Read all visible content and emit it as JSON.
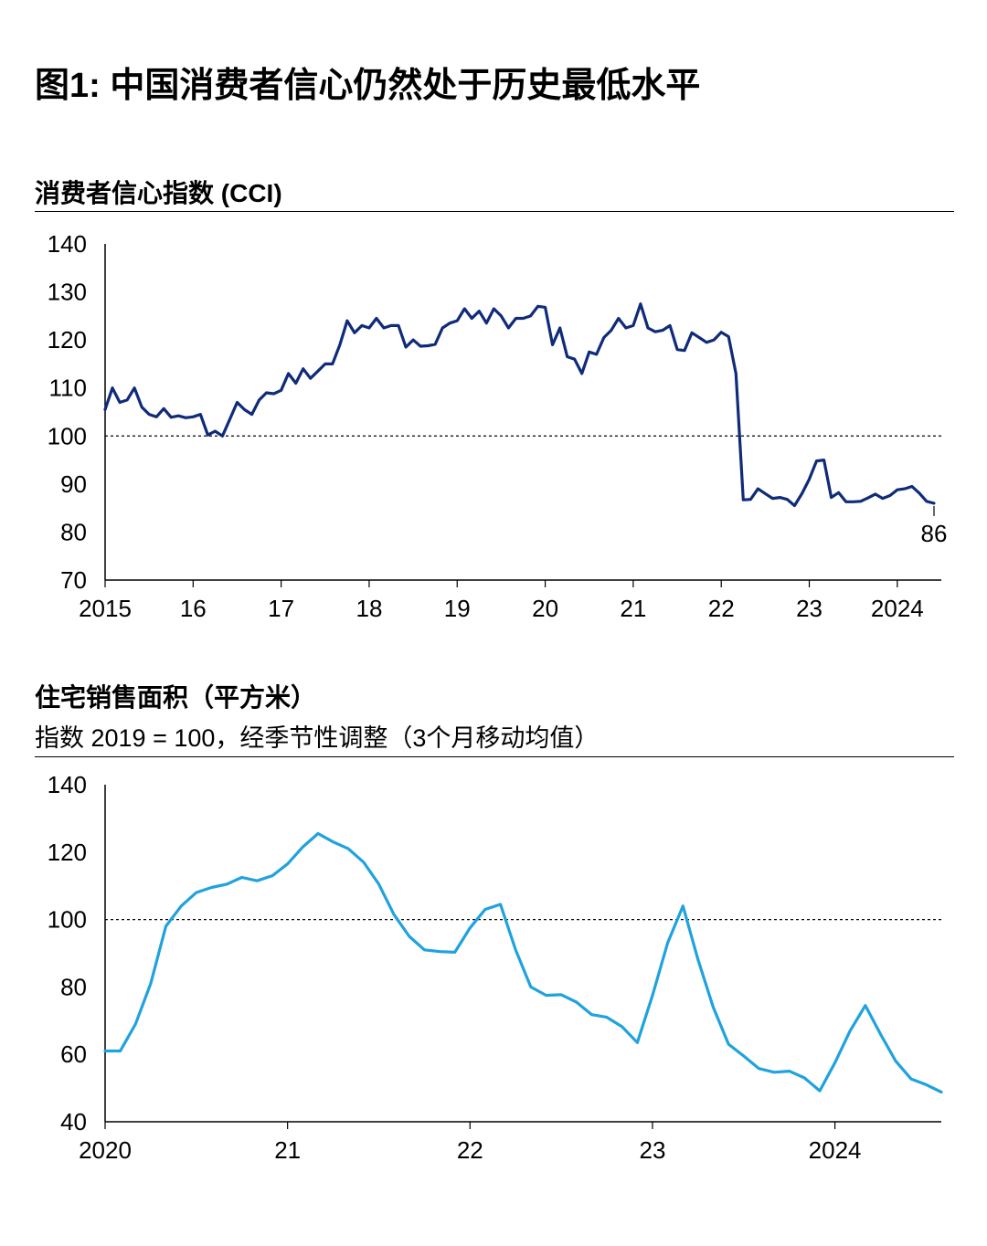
{
  "figure_title": "图1: 中国消费者信心仍然处于历史最低水平",
  "chart_data": [
    {
      "type": "line",
      "title": "消费者信心指数 (CCI)",
      "subtitle": "",
      "ylim": [
        70,
        140
      ],
      "xlim": [
        2015.0,
        2024.5
      ],
      "yticks": [
        140,
        130,
        120,
        110,
        100,
        90,
        80,
        70
      ],
      "xticks": [
        {
          "pos": 2015,
          "label": "2015"
        },
        {
          "pos": 2016,
          "label": "16"
        },
        {
          "pos": 2017,
          "label": "17"
        },
        {
          "pos": 2018,
          "label": "18"
        },
        {
          "pos": 2019,
          "label": "19"
        },
        {
          "pos": 2020,
          "label": "20"
        },
        {
          "pos": 2021,
          "label": "21"
        },
        {
          "pos": 2022,
          "label": "22"
        },
        {
          "pos": 2023,
          "label": "23"
        },
        {
          "pos": 2024,
          "label": "2024"
        }
      ],
      "reference_line": 100,
      "end_label": "86",
      "line_color": "#0f2b7a",
      "series": [
        {
          "x": [
            2015.0,
            2015.083,
            2015.167,
            2015.25,
            2015.333,
            2015.417,
            2015.5,
            2015.583,
            2015.667,
            2015.75,
            2015.833,
            2015.917,
            2016.0,
            2016.083,
            2016.167,
            2016.25,
            2016.333,
            2016.417,
            2016.5,
            2016.583,
            2016.667,
            2016.75,
            2016.833,
            2016.917,
            2017.0,
            2017.083,
            2017.167,
            2017.25,
            2017.333,
            2017.417,
            2017.5,
            2017.583,
            2017.667,
            2017.75,
            2017.833,
            2017.917,
            2018.0,
            2018.083,
            2018.167,
            2018.25,
            2018.333,
            2018.417,
            2018.5,
            2018.583,
            2018.667,
            2018.75,
            2018.833,
            2018.917,
            2019.0,
            2019.083,
            2019.167,
            2019.25,
            2019.333,
            2019.417,
            2019.5,
            2019.583,
            2019.667,
            2019.75,
            2019.833,
            2019.917,
            2020.0,
            2020.083,
            2020.167,
            2020.25,
            2020.333,
            2020.417,
            2020.5,
            2020.583,
            2020.667,
            2020.75,
            2020.833,
            2020.917,
            2021.0,
            2021.083,
            2021.167,
            2021.25,
            2021.333,
            2021.417,
            2021.5,
            2021.583,
            2021.667,
            2021.75,
            2021.833,
            2021.917,
            2022.0,
            2022.083,
            2022.167,
            2022.25,
            2022.333,
            2022.417,
            2022.5,
            2022.583,
            2022.667,
            2022.75,
            2022.833,
            2022.917,
            2023.0,
            2023.083,
            2023.167,
            2023.25,
            2023.333,
            2023.417,
            2023.5,
            2023.583,
            2023.667,
            2023.75,
            2023.833,
            2023.917,
            2024.0,
            2024.083,
            2024.167,
            2024.25,
            2024.333,
            2024.417
          ],
          "y": [
            105.5,
            110,
            107,
            107.5,
            110,
            106,
            104.5,
            104,
            105.7,
            103.9,
            104.2,
            103.8,
            104,
            104.5,
            100.2,
            101,
            100,
            103.5,
            107,
            105.5,
            104.5,
            107.5,
            109,
            108.8,
            109.5,
            113,
            111,
            114,
            112,
            113.5,
            115,
            115,
            119,
            124,
            121.5,
            123,
            122.5,
            124.5,
            122.5,
            123,
            123,
            118.5,
            120,
            118.7,
            118.8,
            119.1,
            122.5,
            123.5,
            124,
            126.5,
            124.5,
            126,
            123.5,
            126.5,
            125,
            122.5,
            124.5,
            124.5,
            125,
            127,
            126.8,
            119,
            122.5,
            116.5,
            116,
            113,
            117.5,
            117,
            120.5,
            122,
            124.5,
            122.5,
            123,
            127.5,
            122.5,
            121.7,
            122,
            123,
            118,
            117.8,
            121.5,
            120.5,
            119.5,
            120,
            121.6,
            120.7,
            113,
            86.7,
            86.8,
            89,
            88,
            87,
            87.2,
            86.8,
            85.5,
            88,
            91,
            94.8,
            95,
            87.2,
            88.2,
            86.3,
            86.3,
            86.4,
            87.1,
            87.9,
            87,
            87.6,
            88.8,
            89,
            89.5,
            88.1,
            86.4,
            86
          ]
        }
      ]
    },
    {
      "type": "line",
      "title": "住宅销售面积（平方米）",
      "subtitle": "指数 2019 = 100，经季节性调整（3个月移动均值）",
      "ylim": [
        40,
        140
      ],
      "xlim": [
        2020.0,
        2024.583
      ],
      "yticks": [
        140,
        120,
        100,
        80,
        60,
        40
      ],
      "xticks": [
        {
          "pos": 2020,
          "label": "2020"
        },
        {
          "pos": 2021,
          "label": "21"
        },
        {
          "pos": 2022,
          "label": "22"
        },
        {
          "pos": 2023,
          "label": "23"
        },
        {
          "pos": 2024,
          "label": "2024"
        }
      ],
      "reference_line": 100,
      "line_color": "#1fa2de",
      "series": [
        {
          "x": [
            2020.0,
            2020.083,
            2020.167,
            2020.25,
            2020.333,
            2020.417,
            2020.5,
            2020.583,
            2020.667,
            2020.75,
            2020.833,
            2020.917,
            2021.0,
            2021.083,
            2021.167,
            2021.25,
            2021.333,
            2021.417,
            2021.5,
            2021.583,
            2021.667,
            2021.75,
            2021.833,
            2021.917,
            2022.0,
            2022.083,
            2022.167,
            2022.25,
            2022.333,
            2022.417,
            2022.5,
            2022.583,
            2022.667,
            2022.75,
            2022.833,
            2022.917,
            2023.0,
            2023.083,
            2023.167,
            2023.25,
            2023.333,
            2023.417,
            2023.5,
            2023.583,
            2023.667,
            2023.75,
            2023.833,
            2023.917,
            2024.0,
            2024.083,
            2024.167,
            2024.25,
            2024.333,
            2024.417,
            2024.5,
            2024.583
          ],
          "y": [
            61,
            61,
            69,
            81,
            98,
            104,
            108,
            109.5,
            110.5,
            112.5,
            111.5,
            113,
            116.5,
            121.5,
            125.5,
            123,
            121,
            117,
            110.5,
            101.5,
            95,
            91,
            90.5,
            90.3,
            97.5,
            103,
            104.5,
            91,
            80,
            77.5,
            77.7,
            75.5,
            71.8,
            71,
            68.2,
            63.5,
            77.5,
            93,
            104,
            88,
            74,
            63,
            59.5,
            55.8,
            54.7,
            55,
            53,
            49.2,
            57.5,
            67,
            74.5,
            66,
            58,
            52.7,
            51,
            48.8
          ]
        }
      ]
    }
  ]
}
